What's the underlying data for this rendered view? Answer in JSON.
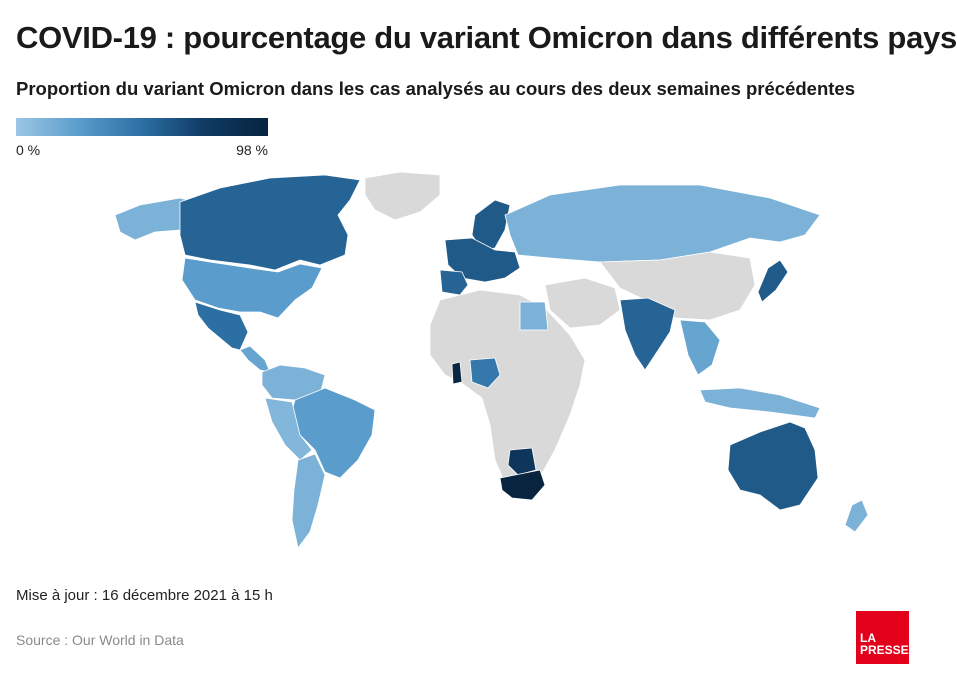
{
  "title": "COVID-19 : pourcentage du variant Omicron dans différents pays",
  "subtitle": "Proportion du variant Omicron dans les cas analysés au cours des deux semaines précédentes",
  "legend": {
    "min_label": "0 %",
    "max_label": "98 %",
    "color_low": "#9cc6e4",
    "color_high": "#08243f"
  },
  "no_data_color": "#d9d9d9",
  "update_text": "Mise à jour : 16 décembre 2021 à 15 h",
  "source_text": "Source : Our World in Data",
  "logo": {
    "line1": "LA",
    "line2": "PRESSE"
  },
  "regions": [
    {
      "id": "alaska",
      "shade": 0.12
    },
    {
      "id": "canada",
      "shade": 0.55
    },
    {
      "id": "greenland",
      "shade": -1
    },
    {
      "id": "usa",
      "shade": 0.25
    },
    {
      "id": "mexico",
      "shade": 0.5
    },
    {
      "id": "central-america",
      "shade": 0.2
    },
    {
      "id": "colombia-venezuela",
      "shade": 0.12
    },
    {
      "id": "brazil",
      "shade": 0.25
    },
    {
      "id": "peru-bolivia",
      "shade": 0.1
    },
    {
      "id": "argentina-chile",
      "shade": 0.12
    },
    {
      "id": "europe-west",
      "shade": 0.6
    },
    {
      "id": "scandinavia",
      "shade": 0.6
    },
    {
      "id": "iberia",
      "shade": 0.55
    },
    {
      "id": "russia",
      "shade": 0.12
    },
    {
      "id": "africa",
      "shade": -1
    },
    {
      "id": "nigeria",
      "shade": 0.45
    },
    {
      "id": "ghana",
      "shade": 0.97
    },
    {
      "id": "south-africa",
      "shade": 1.0
    },
    {
      "id": "botswana",
      "shade": 0.8
    },
    {
      "id": "egypt",
      "shade": 0.12
    },
    {
      "id": "middle-east",
      "shade": -1
    },
    {
      "id": "india",
      "shade": 0.55
    },
    {
      "id": "china",
      "shade": -1
    },
    {
      "id": "japan",
      "shade": 0.6
    },
    {
      "id": "southeast-asia",
      "shade": 0.2
    },
    {
      "id": "indonesia",
      "shade": 0.12
    },
    {
      "id": "australia",
      "shade": 0.6
    },
    {
      "id": "new-zealand",
      "shade": 0.12
    }
  ]
}
